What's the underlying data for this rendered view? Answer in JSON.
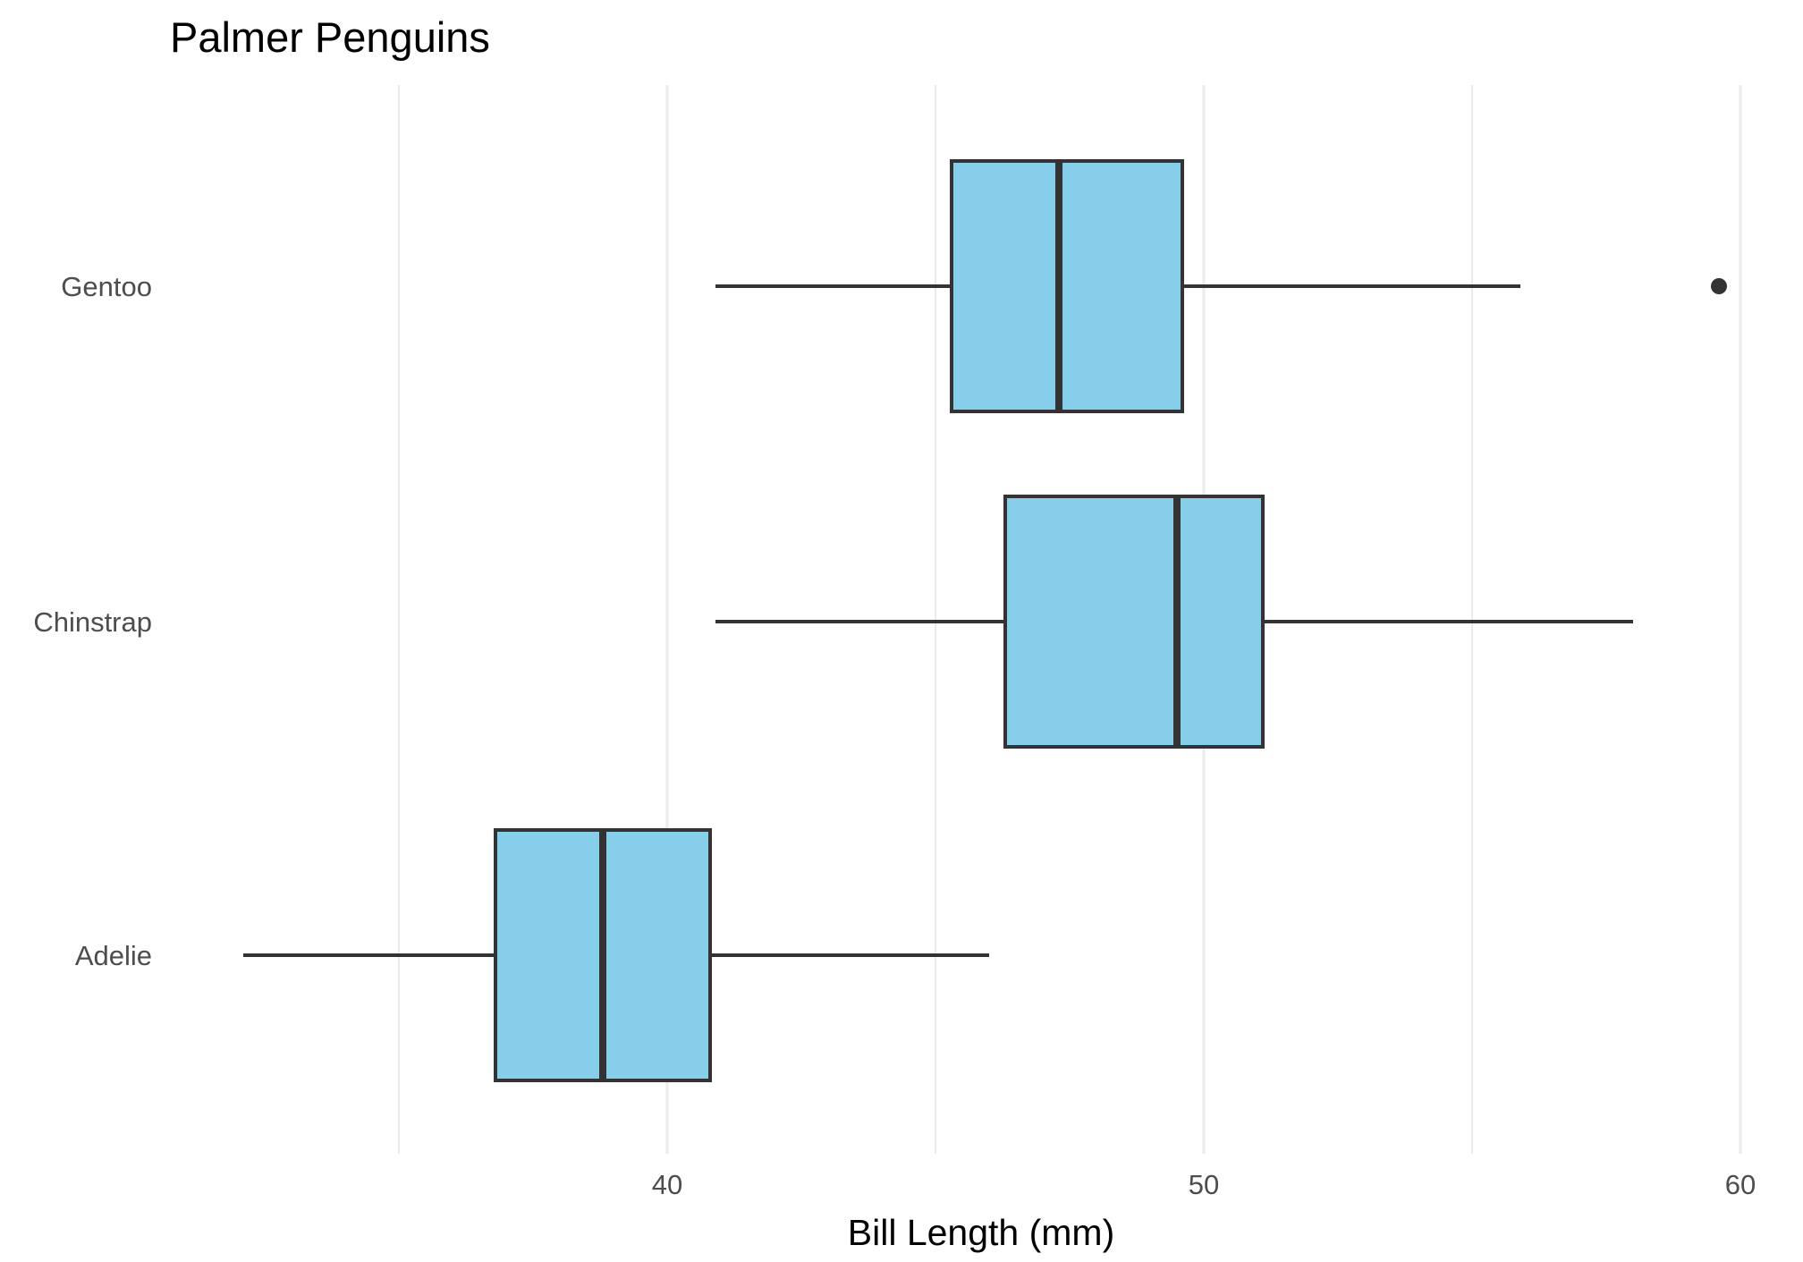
{
  "chart_data": {
    "type": "boxplot",
    "orientation": "horizontal",
    "title": "Palmer Penguins",
    "xlabel": "Bill Length (mm)",
    "ylabel": "",
    "xlim": [
      32.1,
      60.2
    ],
    "x_ticks": [
      40,
      50,
      60
    ],
    "x_minor_grid": [
      35,
      45,
      55
    ],
    "grid": "vertical",
    "box_fill": "#87CEEB",
    "line_color": "#333333",
    "categories": [
      "Adelie",
      "Chinstrap",
      "Gentoo"
    ],
    "boxes": [
      {
        "category": "Adelie",
        "whisker_low": 32.1,
        "q1": 36.8,
        "median": 38.8,
        "q3": 40.8,
        "whisker_high": 46.0,
        "outliers": []
      },
      {
        "category": "Chinstrap",
        "whisker_low": 40.9,
        "q1": 46.3,
        "median": 49.5,
        "q3": 51.1,
        "whisker_high": 58.0,
        "outliers": []
      },
      {
        "category": "Gentoo",
        "whisker_low": 40.9,
        "q1": 45.3,
        "median": 47.3,
        "q3": 49.6,
        "whisker_high": 55.9,
        "outliers": [
          59.6
        ]
      }
    ]
  }
}
